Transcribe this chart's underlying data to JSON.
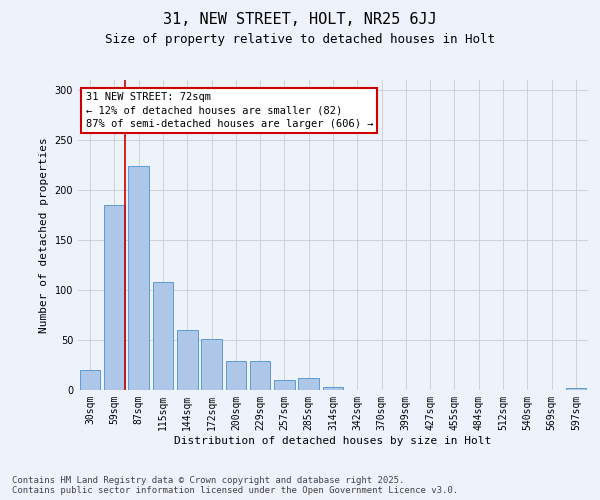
{
  "title1": "31, NEW STREET, HOLT, NR25 6JJ",
  "title2": "Size of property relative to detached houses in Holt",
  "xlabel": "Distribution of detached houses by size in Holt",
  "ylabel": "Number of detached properties",
  "categories": [
    "30sqm",
    "59sqm",
    "87sqm",
    "115sqm",
    "144sqm",
    "172sqm",
    "200sqm",
    "229sqm",
    "257sqm",
    "285sqm",
    "314sqm",
    "342sqm",
    "370sqm",
    "399sqm",
    "427sqm",
    "455sqm",
    "484sqm",
    "512sqm",
    "540sqm",
    "569sqm",
    "597sqm"
  ],
  "values": [
    20,
    185,
    224,
    108,
    60,
    51,
    29,
    29,
    10,
    12,
    3,
    0,
    0,
    0,
    0,
    0,
    0,
    0,
    0,
    0,
    2
  ],
  "bar_color": "#aec6e8",
  "bar_edge_color": "#5b9bd5",
  "vline_x": 1.45,
  "vline_color": "#cc0000",
  "annotation_text": "31 NEW STREET: 72sqm\n← 12% of detached houses are smaller (82)\n87% of semi-detached houses are larger (606) →",
  "annotation_box_color": "#ffffff",
  "annotation_box_edge": "#cc0000",
  "ylim": [
    0,
    310
  ],
  "yticks": [
    0,
    50,
    100,
    150,
    200,
    250,
    300
  ],
  "grid_color": "#cccccc",
  "background_color": "#eef2fa",
  "footer_text": "Contains HM Land Registry data © Crown copyright and database right 2025.\nContains public sector information licensed under the Open Government Licence v3.0.",
  "title1_fontsize": 11,
  "title2_fontsize": 9,
  "axis_label_fontsize": 8,
  "tick_fontsize": 7,
  "annotation_fontsize": 7.5,
  "footer_fontsize": 6.5
}
